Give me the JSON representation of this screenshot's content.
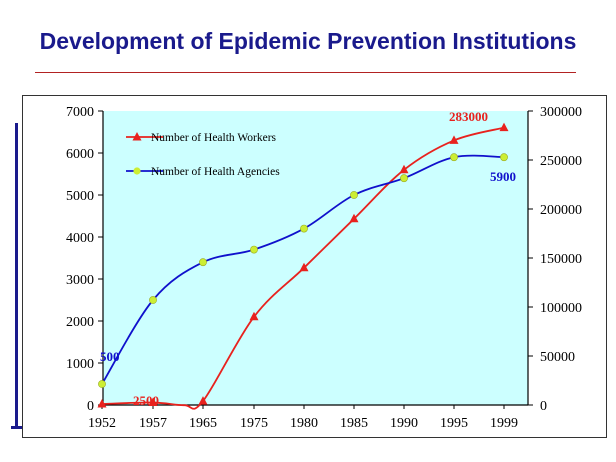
{
  "slide": {
    "title": "Development of  Epidemic Prevention Institutions"
  },
  "chart_data": {
    "type": "line",
    "title": "Development of  Epidemic Prevention Institutions",
    "categories": [
      "1952",
      "1957",
      "1965",
      "1975",
      "1980",
      "1985",
      "1990",
      "1995",
      "1999"
    ],
    "y_left": {
      "ticks": [
        "0",
        "1000",
        "2000",
        "3000",
        "4000",
        "5000",
        "6000",
        "7000"
      ],
      "ylim": [
        0,
        7000
      ]
    },
    "y_right": {
      "ticks": [
        "0",
        "50000",
        "100000",
        "150000",
        "200000",
        "250000",
        "300000"
      ],
      "ylim": [
        0,
        300000
      ]
    },
    "series": [
      {
        "name": "Number of Health Workers",
        "axis": "right",
        "color": "#e8221e",
        "marker": "triangle",
        "values": [
          1000,
          2500,
          4000,
          90000,
          140000,
          190000,
          240000,
          270000,
          283000
        ],
        "extra_points": [
          {
            "x": 1962,
            "y": -200
          }
        ]
      },
      {
        "name": "Number of Health Agencies",
        "axis": "left",
        "color": "#1010cc",
        "marker": "dot",
        "marker_color": "#ccee33",
        "values": [
          500,
          2500,
          3400,
          3700,
          4200,
          5000,
          5400,
          5900,
          5900
        ]
      }
    ],
    "annotations": [
      {
        "text": "283000",
        "color": "#e8221e"
      },
      {
        "text": "5900",
        "color": "#1010cc"
      },
      {
        "text": "500",
        "color": "#1010cc"
      },
      {
        "text": "2500",
        "color": "#e8221e"
      }
    ],
    "plot_background": "#ccffff"
  }
}
